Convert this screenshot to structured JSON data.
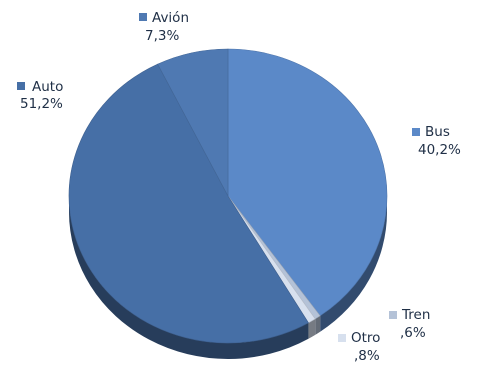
{
  "chart_data": {
    "type": "pie",
    "title": "",
    "slices": [
      {
        "category": "Bus",
        "value": 40.2,
        "label": "40,2%",
        "color": "#5b89c8"
      },
      {
        "category": "Tren",
        "value": 0.6,
        "label": ",6%",
        "color": "#b4c2d7"
      },
      {
        "category": "Otro",
        "value": 0.8,
        "label": ",8%",
        "color": "#d7e0ee"
      },
      {
        "category": "Auto",
        "value": 51.2,
        "label": "51,2%",
        "color": "#466fa6"
      },
      {
        "category": "Avión",
        "value": 7.3,
        "label": "7,3%",
        "color": "#4f79b2"
      }
    ],
    "legend": "inline labels next to slices",
    "style": "3d"
  }
}
